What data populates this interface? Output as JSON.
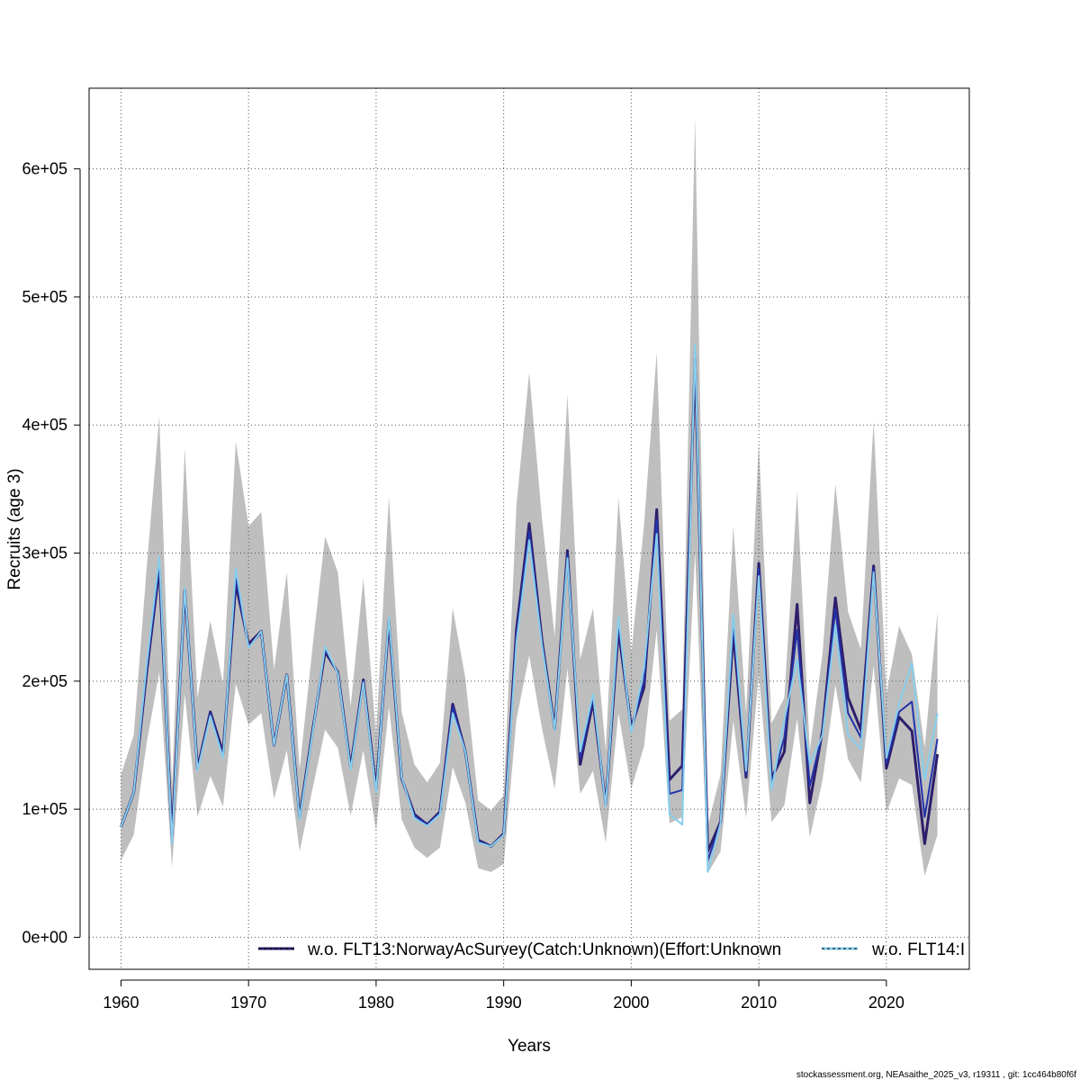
{
  "chart_data": {
    "type": "line",
    "xlabel": "Years",
    "ylabel": "Recruits (age 3)",
    "xlim": [
      1957.5,
      2026.5
    ],
    "ylim": [
      -25000,
      663000
    ],
    "x_ticks": [
      1960,
      1970,
      1980,
      1990,
      2000,
      2010,
      2020
    ],
    "x_tick_labels": [
      "1960",
      "1970",
      "1980",
      "1990",
      "2000",
      "2010",
      "2020"
    ],
    "y_ticks": [
      0,
      100000,
      200000,
      300000,
      400000,
      500000,
      600000
    ],
    "y_tick_labels": [
      "0e+00",
      "1e+05",
      "2e+05",
      "3e+05",
      "4e+05",
      "5e+05",
      "6e+05"
    ],
    "grid": true,
    "legend_position": "bottom",
    "colors": {
      "band": "#bebebe",
      "series_1": "#2e1d6b",
      "series_2": "#87ceeb",
      "base": "#2233aa"
    },
    "x": [
      1960,
      1961,
      1962,
      1963,
      1964,
      1965,
      1966,
      1967,
      1968,
      1969,
      1970,
      1971,
      1972,
      1973,
      1974,
      1975,
      1976,
      1977,
      1978,
      1979,
      1980,
      1981,
      1982,
      1983,
      1984,
      1985,
      1986,
      1987,
      1988,
      1989,
      1990,
      1991,
      1992,
      1993,
      1994,
      1995,
      1996,
      1997,
      1998,
      1999,
      2000,
      2001,
      2002,
      2003,
      2004,
      2005,
      2006,
      2007,
      2008,
      2009,
      2010,
      2011,
      2012,
      2013,
      2014,
      2015,
      2016,
      2017,
      2018,
      2019,
      2020,
      2021,
      2022,
      2023,
      2024
    ],
    "band_upper": [
      127000,
      158000,
      287000,
      407000,
      117000,
      382000,
      187000,
      247000,
      198000,
      387000,
      321000,
      332000,
      209000,
      285000,
      131000,
      225000,
      313000,
      285000,
      180000,
      280000,
      158000,
      344000,
      176000,
      135000,
      121000,
      136000,
      257000,
      202000,
      107000,
      99000,
      111000,
      337000,
      441000,
      327000,
      235000,
      424000,
      217000,
      257000,
      146000,
      343000,
      222000,
      322000,
      457000,
      169000,
      178000,
      640000,
      87000,
      127000,
      321000,
      175000,
      386000,
      167000,
      187000,
      348000,
      146000,
      222000,
      354000,
      254000,
      225000,
      403000,
      190000,
      243000,
      221000,
      148000,
      254000
    ],
    "band_lower": [
      60000,
      80000,
      151000,
      207000,
      55000,
      190000,
      94000,
      126000,
      102000,
      198000,
      166000,
      175000,
      108000,
      146000,
      67000,
      115000,
      162000,
      148000,
      95000,
      146000,
      83000,
      180000,
      92000,
      70000,
      62000,
      70000,
      133000,
      105000,
      54000,
      51000,
      57000,
      170000,
      220000,
      163000,
      116000,
      210000,
      112000,
      130000,
      74000,
      175000,
      116000,
      149000,
      240000,
      89000,
      94000,
      300000,
      50000,
      67000,
      169000,
      93000,
      206000,
      90000,
      103000,
      171000,
      78000,
      123000,
      197000,
      139000,
      121000,
      212000,
      97000,
      124000,
      119000,
      48000,
      80000
    ],
    "series": [
      {
        "name": "w.o. FLT13:NorwayAcSurvey(Catch:Unknown)(Effort:Unknown",
        "values": [
          86000,
          113000,
          206000,
          288000,
          79000,
          271000,
          132000,
          176000,
          144000,
          276000,
          229000,
          239000,
          150000,
          205000,
          94000,
          160000,
          223000,
          207000,
          133000,
          201000,
          116000,
          247000,
          124000,
          96000,
          88000,
          98000,
          182000,
          145000,
          76000,
          71000,
          81000,
          240000,
          323000,
          232000,
          163000,
          302000,
          135000,
          184000,
          104000,
          240000,
          164000,
          195000,
          334000,
          123000,
          134000,
          452000,
          67000,
          90000,
          238000,
          125000,
          292000,
          124000,
          145000,
          260000,
          105000,
          162000,
          265000,
          187000,
          162000,
          290000,
          132000,
          172000,
          161000,
          73000,
          143000
        ]
      },
      {
        "name": "w.o. FLT14:I",
        "values": [
          86000,
          113000,
          212000,
          297000,
          73000,
          273000,
          130000,
          173000,
          140000,
          288000,
          226000,
          239000,
          150000,
          205000,
          92000,
          158000,
          227000,
          206000,
          131000,
          199000,
          113000,
          250000,
          125000,
          93000,
          87000,
          96000,
          175000,
          145000,
          74000,
          71000,
          80000,
          230000,
          310000,
          228000,
          162000,
          296000,
          145000,
          190000,
          102000,
          250000,
          160000,
          210000,
          315000,
          96000,
          88000,
          463000,
          51000,
          89000,
          252000,
          130000,
          282000,
          115000,
          170000,
          217000,
          135000,
          158000,
          244000,
          158000,
          147000,
          285000,
          140000,
          182000,
          214000,
          123000,
          175000
        ]
      }
    ],
    "base_values": [
      86000,
      113000,
      208000,
      290000,
      77000,
      270000,
      131000,
      175000,
      142000,
      280000,
      227000,
      238000,
      150000,
      204000,
      93000,
      159000,
      225000,
      206000,
      132000,
      200000,
      114000,
      248000,
      124000,
      95000,
      88000,
      97000,
      180000,
      145000,
      75000,
      71000,
      80000,
      236000,
      317000,
      230000,
      162000,
      299000,
      140000,
      187000,
      103000,
      245000,
      161000,
      200000,
      326000,
      112000,
      115000,
      457000,
      60000,
      89000,
      244000,
      127000,
      288000,
      120000,
      156000,
      240000,
      118000,
      160000,
      256000,
      175000,
      156000,
      288000,
      136000,
      176000,
      184000,
      94000,
      155000
    ]
  },
  "footer": "stockassessment.org, NEAsaithe_2025_v3, r19311 , git: 1cc464b80f6f"
}
